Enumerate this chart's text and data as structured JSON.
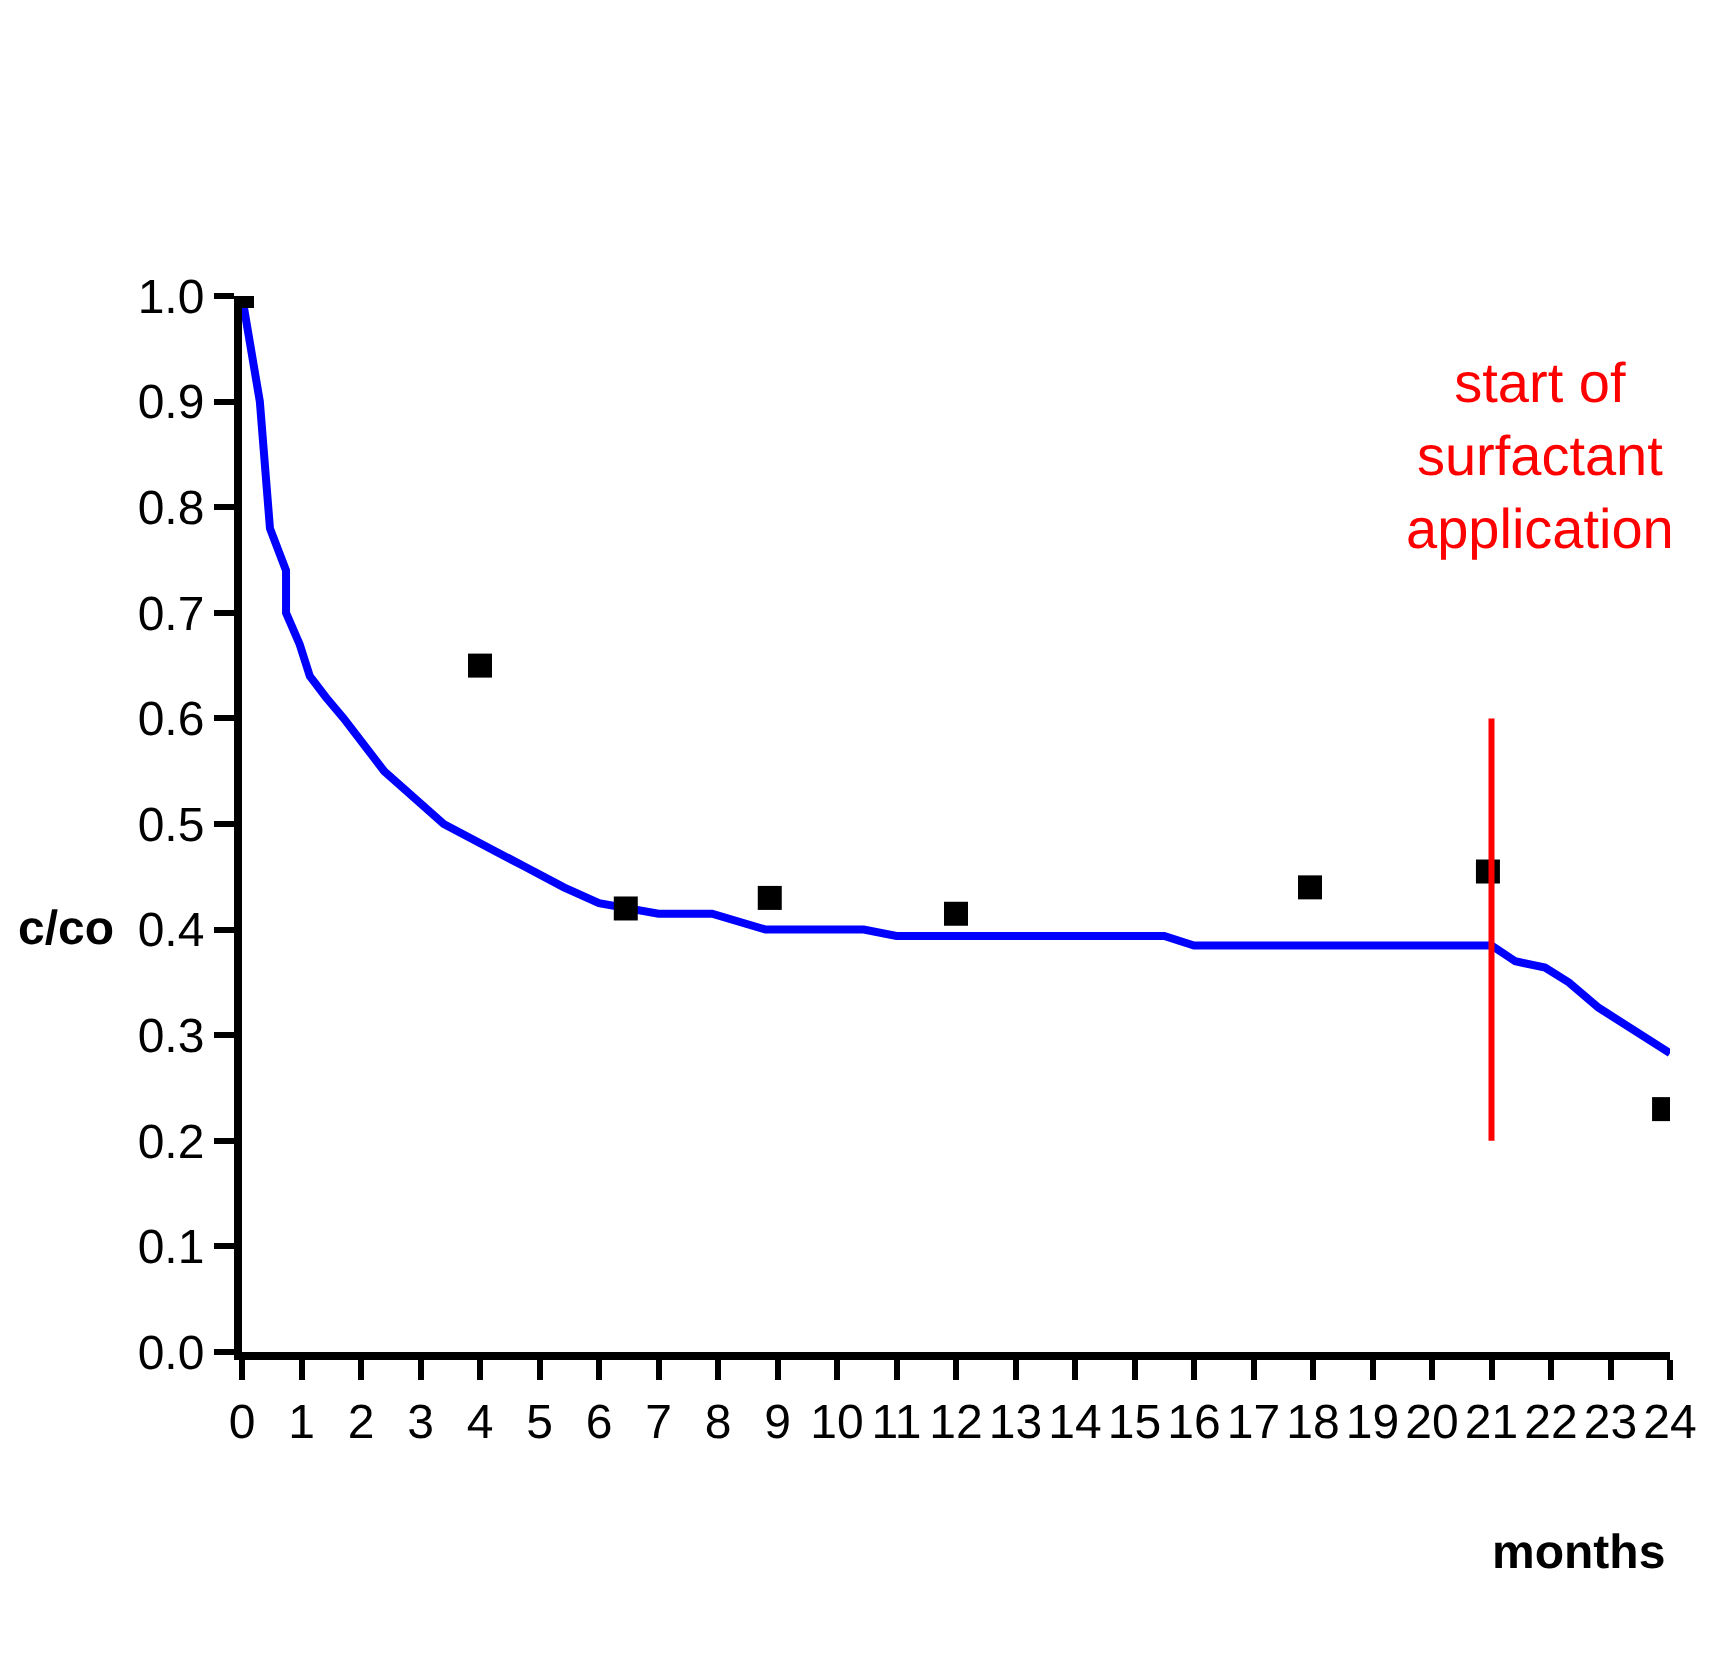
{
  "chart_data": {
    "type": "scatter",
    "xlabel": "months",
    "ylabel": "c/co",
    "xlim": [
      0,
      24
    ],
    "xticks": [
      0,
      1,
      2,
      3,
      4,
      5,
      6,
      7,
      8,
      9,
      10,
      11,
      12,
      13,
      14,
      15,
      16,
      17,
      18,
      19,
      20,
      21,
      22,
      23,
      24
    ],
    "ylim": [
      0,
      1.0
    ],
    "yticks": [
      {
        "value": 0,
        "label": "0.0"
      },
      {
        "value": 0.1,
        "label": "0.1"
      },
      {
        "value": 0.2,
        "label": "0.2"
      },
      {
        "value": 0.3,
        "label": "0.3"
      },
      {
        "value": 0.4,
        "label": "0.4"
      },
      {
        "value": 0.5,
        "label": "0.5"
      },
      {
        "value": 0.6,
        "label": "0.6"
      },
      {
        "value": 0.7,
        "label": "0.7"
      },
      {
        "value": 0.8,
        "label": "0.8"
      },
      {
        "value": 0.9,
        "label": "0.9"
      },
      {
        "value": 1.0,
        "label": "1.0"
      }
    ],
    "series": [
      {
        "type": "line",
        "color": "#0000ff",
        "line_style": "solid",
        "marker": "none",
        "x": [
          0,
          0.3,
          0.47,
          0.74,
          0.74,
          0.97,
          1.14,
          1.41,
          1.71,
          2.39,
          3.39,
          4.4,
          4.74,
          5.41,
          6.0,
          7.0,
          7.9,
          8.8,
          10.45,
          11.0,
          15.5,
          16.0,
          21.0,
          21.4,
          21.9,
          22.3,
          22.8,
          24.0
        ],
        "values": [
          1.0,
          0.9,
          0.78,
          0.74,
          0.7,
          0.67,
          0.64,
          0.62,
          0.6,
          0.55,
          0.5,
          0.47,
          0.46,
          0.44,
          0.425,
          0.415,
          0.415,
          0.4,
          0.4,
          0.394,
          0.394,
          0.385,
          0.385,
          0.37,
          0.364,
          0.35,
          0.326,
          0.283
        ]
      },
      {
        "color": "#000000",
        "marker": "square",
        "x": [
          0,
          4,
          6.45,
          8.87,
          12.0,
          17.95,
          20.94,
          23.9
        ],
        "values": [
          1.0,
          0.65,
          0.42,
          0.43,
          0.415,
          0.44,
          0.455,
          0.23
        ]
      }
    ],
    "ref_lines": [
      {
        "axis": "x",
        "value": 21,
        "label": "start of\nsurfactant\napplication",
        "color": "#ff0000"
      }
    ]
  }
}
